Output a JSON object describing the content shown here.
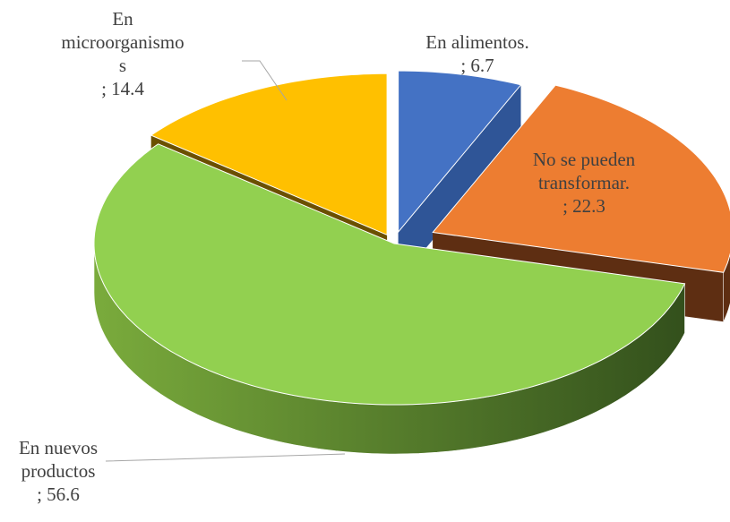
{
  "chart_data": {
    "type": "pie3d",
    "categories": [
      "En alimentos.",
      "No se pueden transformar.",
      "En nuevos productos",
      "En microorganismos"
    ],
    "values": [
      6.7,
      22.3,
      56.6,
      14.4
    ],
    "value_labels": [
      "; 6.7",
      "; 22.3",
      "; 56.6",
      "; 14.4"
    ],
    "colors": [
      "#4472c4",
      "#ed7d31",
      "#92d050",
      "#ffc000"
    ]
  }
}
